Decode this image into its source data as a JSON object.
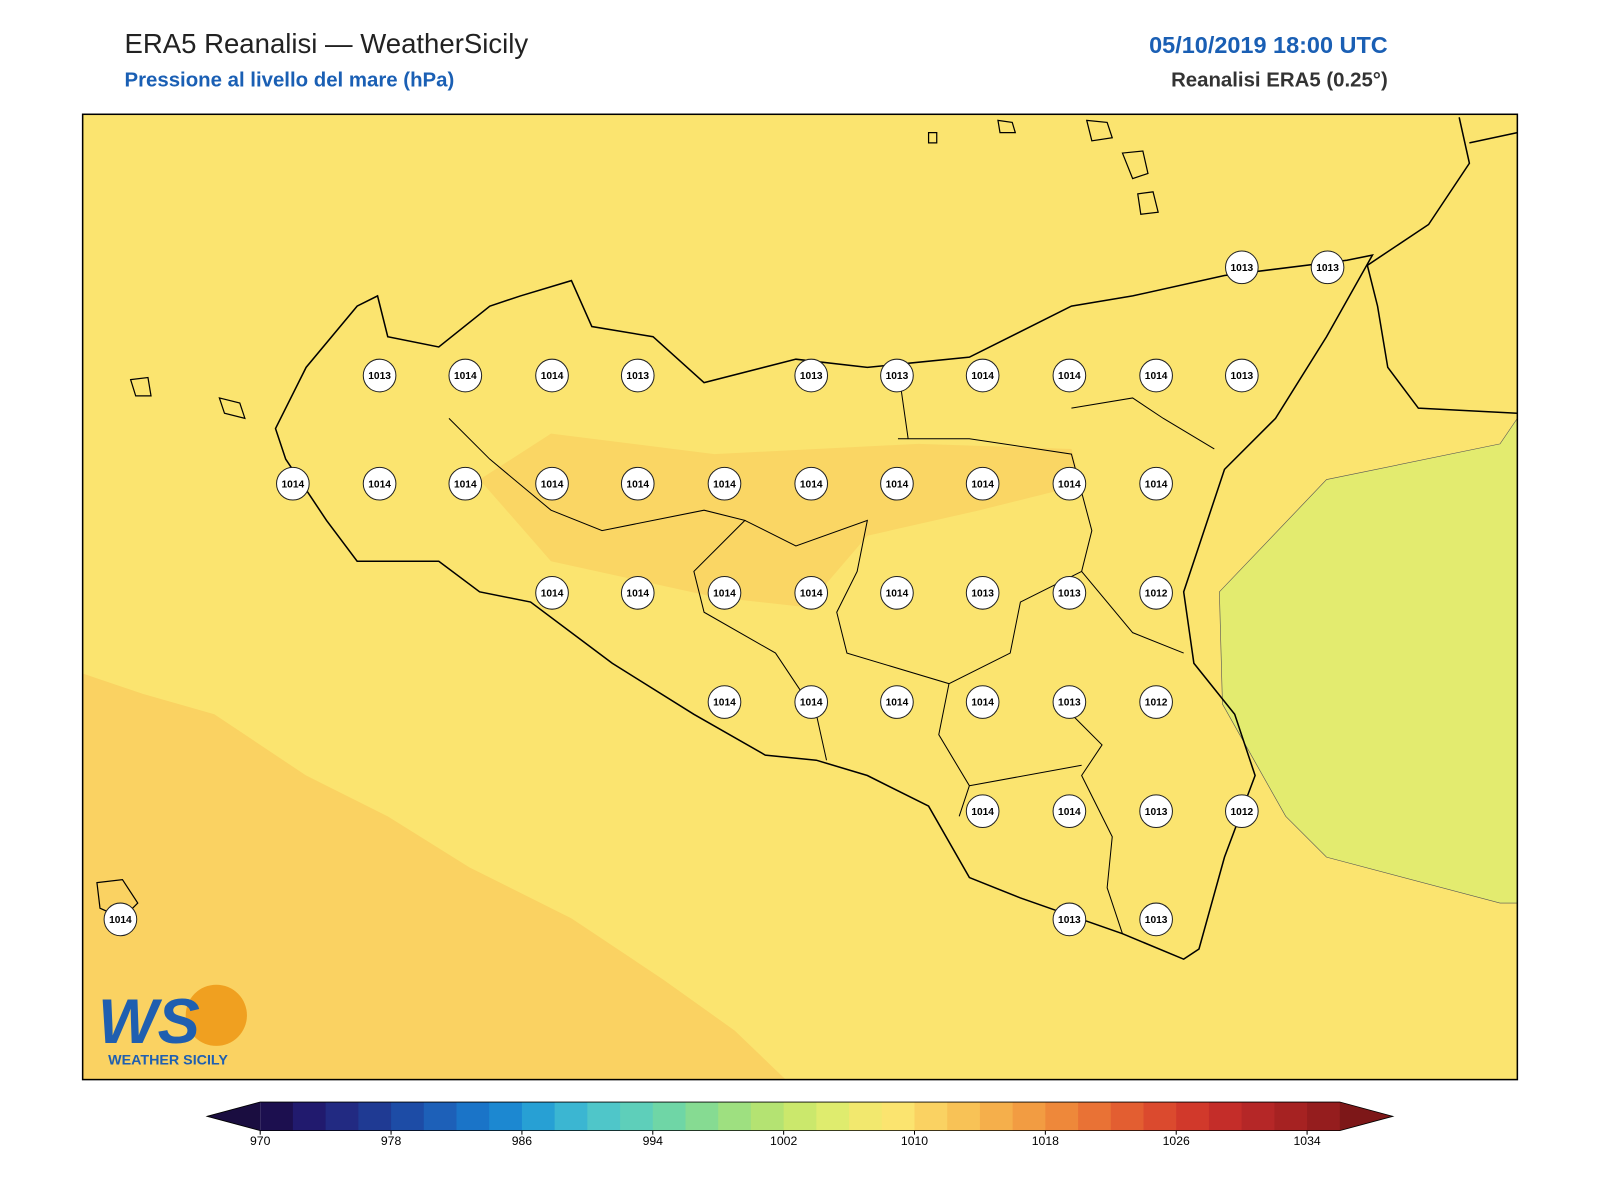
{
  "header": {
    "title": "ERA5 Reanalisi — WeatherSicily",
    "subtitle": "Pressione al livello del mare (hPa)",
    "date": "05/10/2019 18:00 UTC",
    "source": "Reanalisi ERA5 (0.25°)"
  },
  "stations": [
    1013,
    1013,
    1013,
    1014,
    1014,
    1013,
    1013,
    1013,
    1014,
    1014,
    1014,
    1013,
    1014,
    1014,
    1014,
    1014,
    1014,
    1014,
    1014,
    1014,
    1014,
    1014,
    1014,
    1014,
    1014,
    1014,
    1014,
    1014,
    1013,
    1013,
    1012,
    1014,
    1014,
    1014,
    1014,
    1013,
    1012,
    1014,
    1014,
    1013,
    1012,
    1014,
    1013,
    1013
  ],
  "colorbar": {
    "lim": [
      970,
      1036
    ],
    "ticks": [
      970,
      978,
      986,
      994,
      1002,
      1010,
      1018,
      1026,
      1034
    ]
  },
  "logo": {
    "mark": "WS",
    "name": "WEATHER SICILY"
  }
}
